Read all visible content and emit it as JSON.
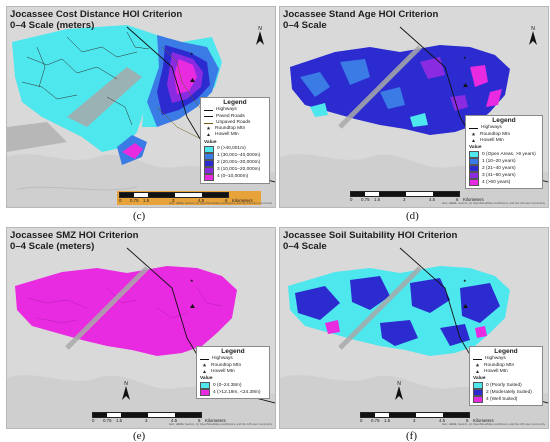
{
  "panels": {
    "c": {
      "title1": "Jocassee Cost Distance HOI Criterion",
      "title2": "0–4 Scale (meters)",
      "caption": "(c)",
      "legend": {
        "title": "Legend",
        "layers": [
          "Highways",
          "Paved Roads",
          "Unpaved Roads",
          "Roundtop Mtn",
          "Howell Mtn"
        ],
        "value_label": "Value",
        "classes": [
          {
            "label": "0 (>40,001m)",
            "color": "#4ee7ee"
          },
          {
            "label": "1 (30,001–40,000m)",
            "color": "#3a7be6"
          },
          {
            "label": "2 (20,001–30,000m)",
            "color": "#2b2bd0"
          },
          {
            "label": "3 (10,001–20,000m)",
            "color": "#8a2be2"
          },
          {
            "label": "4 (0–10,000m)",
            "color": "#e82be0"
          }
        ]
      },
      "scale": {
        "ticks": [
          "0",
          "0.75",
          "1.5",
          "3",
          "4.5",
          "6"
        ],
        "unit": "Kilometers"
      },
      "north": "N",
      "credit": "Esri, HERE, Garmin, (c) OpenStreetMap contributors, and the GIS user community"
    },
    "d": {
      "title1": "Jocassee Stand Age HOI Criterion",
      "title2": "0–4 Scale",
      "caption": "(d)",
      "legend": {
        "title": "Legend",
        "layers": [
          "Highways",
          "Roundtop Mtn",
          "Howell Mtn"
        ],
        "value_label": "Value",
        "classes": [
          {
            "label": "0 (Open Areas, >9 years)",
            "color": "#4ee7ee"
          },
          {
            "label": "1 (10–20 years)",
            "color": "#3a7be6"
          },
          {
            "label": "2 (21–40 years)",
            "color": "#2b2bd0"
          },
          {
            "label": "3 (41–60 years)",
            "color": "#8a2be2"
          },
          {
            "label": "4 (>60 years)",
            "color": "#e82be0"
          }
        ]
      },
      "scale": {
        "ticks": [
          "0",
          "0.75",
          "1.5",
          "3",
          "4.5",
          "6"
        ],
        "unit": "Kilometers"
      },
      "north": "N",
      "credit": "Esri, HERE, Garmin, (c) OpenStreetMap contributors, and the GIS user community"
    },
    "e": {
      "title1": "Jocassee SMZ HOI Criterion",
      "title2": "0–4 Scale (meters)",
      "caption": "(e)",
      "legend": {
        "title": "Legend",
        "layers": [
          "Highways",
          "Roundtop Mtn",
          "Howell Mtn"
        ],
        "value_label": "Value",
        "classes": [
          {
            "label": "0 (0–24.38m)",
            "color": "#4ee7ee"
          },
          {
            "label": "4 (>12.19m, <24.38m)",
            "color": "#e82be0"
          }
        ]
      },
      "scale": {
        "ticks": [
          "0",
          "0.75",
          "1.5",
          "3",
          "4.5",
          "6"
        ],
        "unit": "Kilometers"
      },
      "north": "N",
      "credit": "Esri, HERE, Garmin, (c) OpenStreetMap contributors, and the GIS user community"
    },
    "f": {
      "title1": "Jocassee Soil Suitability HOI Criterion",
      "title2": "0–4 Scale",
      "caption": "(f)",
      "legend": {
        "title": "Legend",
        "layers": [
          "Highways",
          "Roundtop Mtn",
          "Howell Mtn"
        ],
        "value_label": "Value",
        "classes": [
          {
            "label": "0 (Poorly Suited)",
            "color": "#4ee7ee"
          },
          {
            "label": "2 (Moderately Suited)",
            "color": "#2b2bd0"
          },
          {
            "label": "4 (Well Suited)",
            "color": "#e82be0"
          }
        ]
      },
      "scale": {
        "ticks": [
          "0",
          "0.75",
          "1.5",
          "3",
          "4.5",
          "6"
        ],
        "unit": "Kilometers"
      },
      "north": "N",
      "credit": "Esri, HERE, Garmin, (c) OpenStreetMap contributors, and the GIS user community"
    }
  },
  "colors": {
    "basemap": "#d9d9d9",
    "water": "#a8a8a8",
    "class0": "#4ee7ee",
    "class1": "#3a7be6",
    "class2": "#2b2bd0",
    "class3": "#8a2be2",
    "class4": "#e82be0",
    "scale_orange": "#e8a23a"
  }
}
